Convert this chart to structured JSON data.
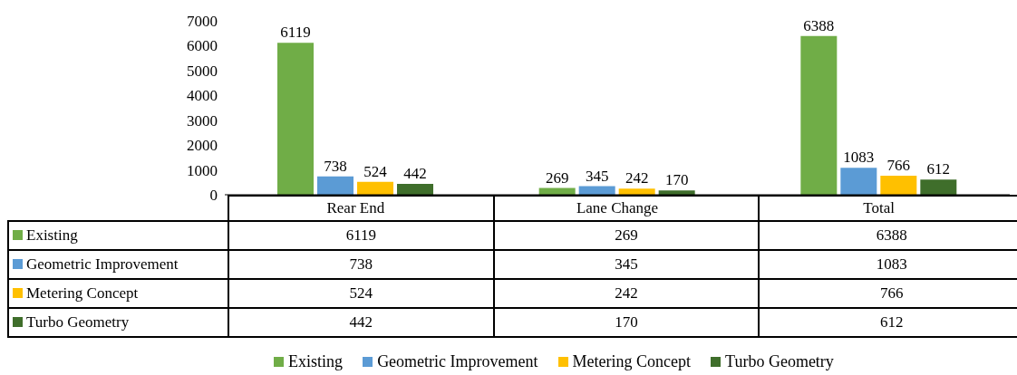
{
  "chart_data": {
    "type": "bar",
    "categories": [
      "Rear End",
      "Lane Change",
      "Total"
    ],
    "series": [
      {
        "name": "Existing",
        "color": "#70ad47",
        "values": [
          6119,
          269,
          6388
        ],
        "value_labels": [
          "6119",
          "269",
          "6388"
        ]
      },
      {
        "name": "Geometric Improvement",
        "color": "#5b9bd5",
        "values": [
          738,
          345,
          1083
        ],
        "value_labels": [
          "738",
          "345",
          "1083"
        ]
      },
      {
        "name": "Metering Concept",
        "color": "#ffc000",
        "values": [
          524,
          242,
          766
        ],
        "value_labels": [
          "524",
          "242",
          "766"
        ]
      },
      {
        "name": "Turbo Geometry",
        "color": "#3f6e2b",
        "values": [
          442,
          170,
          612
        ],
        "value_labels": [
          "442",
          "170",
          "612"
        ]
      }
    ],
    "annotations": [
      "6119",
      "269",
      "6388",
      "738",
      "345",
      "1083",
      "524",
      "242",
      "766",
      "442",
      "170",
      "612"
    ],
    "ylim": [
      0,
      7000
    ],
    "yticks": [
      0,
      1000,
      2000,
      3000,
      4000,
      5000,
      6000,
      7000
    ],
    "grid": false,
    "legend": "bottom",
    "data_labels": true
  }
}
